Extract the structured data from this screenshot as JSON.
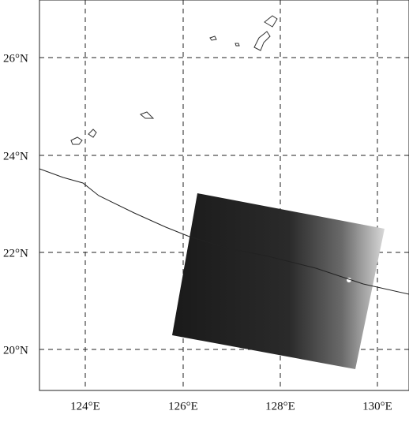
{
  "map": {
    "lat_labels": [
      "26°N",
      "24°N",
      "22°N",
      "20°N"
    ],
    "lon_labels": [
      "124°E",
      "126°E",
      "128°E",
      "130°E"
    ]
  }
}
